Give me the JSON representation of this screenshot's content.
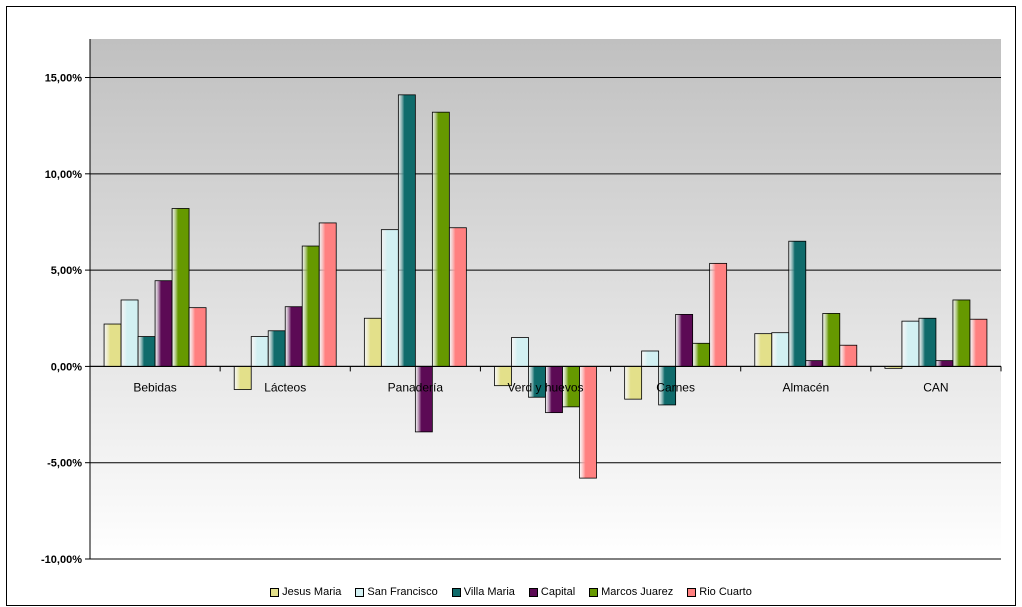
{
  "chart_data": {
    "type": "bar",
    "categories": [
      "Bebidas",
      "Lácteos",
      "Panadería",
      "Verd y huevos",
      "Carnes",
      "Almacén",
      "CAN"
    ],
    "series": [
      {
        "name": "Jesus Maria",
        "values": [
          2.2,
          -1.2,
          2.5,
          -1.0,
          -1.7,
          1.7,
          -0.1
        ],
        "color": "#e3e08a"
      },
      {
        "name": "San Francisco",
        "values": [
          3.45,
          1.55,
          7.1,
          1.5,
          0.8,
          1.75,
          2.35
        ],
        "color": "#d2f0f2"
      },
      {
        "name": "Villa Maria",
        "values": [
          1.55,
          1.85,
          14.1,
          -1.6,
          -2.0,
          6.5,
          2.5
        ],
        "color": "#0f6b6b"
      },
      {
        "name": "Capital",
        "values": [
          4.45,
          3.1,
          -3.4,
          -2.4,
          2.7,
          0.3,
          0.3
        ],
        "color": "#5c0a55"
      },
      {
        "name": "Marcos Juarez",
        "values": [
          8.2,
          6.25,
          13.2,
          -2.1,
          1.2,
          2.75,
          3.45
        ],
        "color": "#669900"
      },
      {
        "name": "Rio Cuarto",
        "values": [
          3.05,
          7.45,
          7.2,
          -5.8,
          5.35,
          1.1,
          2.45
        ],
        "color": "#ff8080"
      }
    ],
    "yticks": [
      "15,00%",
      "10,00%",
      "5,00%",
      "0,00%",
      "-5,00%",
      "-10,00%"
    ],
    "ylim": [
      -10,
      17
    ],
    "grid": true,
    "legend_position": "bottom"
  }
}
